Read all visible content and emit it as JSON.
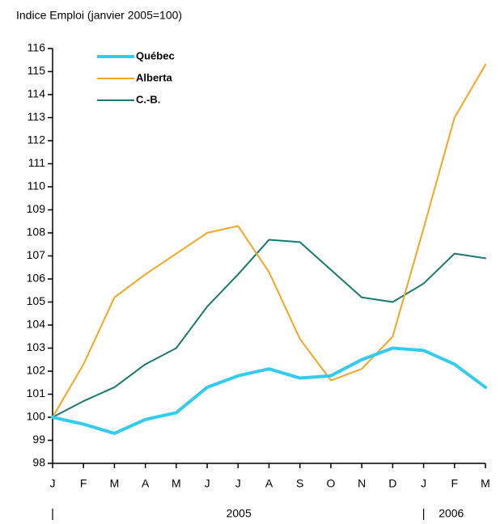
{
  "chart_data": {
    "type": "line",
    "title": "Indice Emploi (janvier 2005=100)",
    "categories": [
      "J",
      "F",
      "M",
      "A",
      "M",
      "J",
      "J",
      "A",
      "S",
      "O",
      "N",
      "D",
      "J",
      "F",
      "M"
    ],
    "year_labels": [
      "2005",
      "2006"
    ],
    "series": [
      {
        "name": "Québec",
        "color": "#33ccee",
        "width": 4,
        "values": [
          100,
          99.7,
          99.3,
          99.9,
          100.2,
          101.3,
          101.8,
          102.1,
          101.7,
          101.8,
          102.5,
          103.0,
          102.9,
          102.3,
          101.3
        ]
      },
      {
        "name": "Alberta",
        "color": "#f5a623",
        "width": 2,
        "values": [
          100,
          102.3,
          105.2,
          106.2,
          107.1,
          108.0,
          108.3,
          106.3,
          103.4,
          101.6,
          102.1,
          103.5,
          108.2,
          113.0,
          115.3
        ]
      },
      {
        "name": "C.-B.",
        "color": "#1a7a6e",
        "width": 2,
        "values": [
          100,
          100.7,
          101.3,
          102.3,
          103.0,
          104.8,
          106.2,
          107.7,
          107.6,
          106.4,
          105.2,
          105.0,
          105.8,
          107.1,
          106.9
        ]
      }
    ],
    "ylim": [
      98,
      116
    ],
    "yticks": [
      98,
      99,
      100,
      101,
      102,
      103,
      104,
      105,
      106,
      107,
      108,
      109,
      110,
      111,
      112,
      113,
      114,
      115,
      116
    ],
    "grid": false
  }
}
